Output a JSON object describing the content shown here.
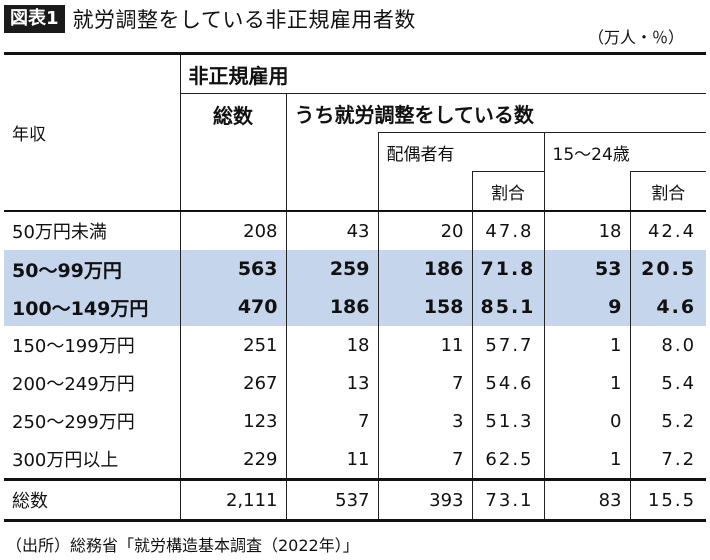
{
  "title": {
    "badge": "図表1",
    "text": "就労調整をしている非正規雇用者数"
  },
  "unit": "（万人・％）",
  "header": {
    "group": "非正規雇用",
    "total": "総数",
    "adjusting": "うち就労調整をしている数",
    "row_label": "年収",
    "spouse": "配偶者有",
    "youth": "15〜24歳",
    "ratio": "割合"
  },
  "rows": [
    {
      "income": "50万円未満",
      "total": "208",
      "adjusting": "43",
      "spouse": "20",
      "spouse_pct": "47.8",
      "youth": "18",
      "youth_pct": "42.4",
      "highlight": false
    },
    {
      "income": "50〜99万円",
      "total": "563",
      "adjusting": "259",
      "spouse": "186",
      "spouse_pct": "71.8",
      "youth": "53",
      "youth_pct": "20.5",
      "highlight": true
    },
    {
      "income": "100〜149万円",
      "total": "470",
      "adjusting": "186",
      "spouse": "158",
      "spouse_pct": "85.1",
      "youth": "9",
      "youth_pct": "4.6",
      "highlight": true
    },
    {
      "income": "150〜199万円",
      "total": "251",
      "adjusting": "18",
      "spouse": "11",
      "spouse_pct": "57.7",
      "youth": "1",
      "youth_pct": "8.0",
      "highlight": false
    },
    {
      "income": "200〜249万円",
      "total": "267",
      "adjusting": "13",
      "spouse": "7",
      "spouse_pct": "54.6",
      "youth": "1",
      "youth_pct": "5.4",
      "highlight": false
    },
    {
      "income": "250〜299万円",
      "total": "123",
      "adjusting": "7",
      "spouse": "3",
      "spouse_pct": "51.3",
      "youth": "0",
      "youth_pct": "5.2",
      "highlight": false
    },
    {
      "income": "300万円以上",
      "total": "229",
      "adjusting": "11",
      "spouse": "7",
      "spouse_pct": "62.5",
      "youth": "1",
      "youth_pct": "7.2",
      "highlight": false
    }
  ],
  "total_row": {
    "income": "総数",
    "total": "2,111",
    "adjusting": "537",
    "spouse": "393",
    "spouse_pct": "73.1",
    "youth": "83",
    "youth_pct": "15.5"
  },
  "source": "（出所）総務省「就労構造基本調査（2022年）」",
  "colors": {
    "highlight": "#c5d5ec",
    "badge": "#1a1a1a"
  },
  "chart_data": {
    "type": "table",
    "title": "就労調整をしている非正規雇用者数",
    "columns": [
      "年収",
      "総数",
      "うち就労調整をしている数",
      "配偶者有",
      "割合",
      "15〜24歳",
      "割合"
    ],
    "rows": [
      [
        "50万円未満",
        208,
        43,
        20,
        47.8,
        18,
        42.4
      ],
      [
        "50〜99万円",
        563,
        259,
        186,
        71.8,
        53,
        20.5
      ],
      [
        "100〜149万円",
        470,
        186,
        158,
        85.1,
        9,
        4.6
      ],
      [
        "150〜199万円",
        251,
        18,
        11,
        57.7,
        1,
        8.0
      ],
      [
        "200〜249万円",
        267,
        13,
        7,
        54.6,
        1,
        5.4
      ],
      [
        "250〜299万円",
        123,
        7,
        3,
        51.3,
        0,
        5.2
      ],
      [
        "300万円以上",
        229,
        11,
        7,
        62.5,
        1,
        7.2
      ],
      [
        "総数",
        2111,
        537,
        393,
        73.1,
        83,
        15.5
      ]
    ]
  }
}
